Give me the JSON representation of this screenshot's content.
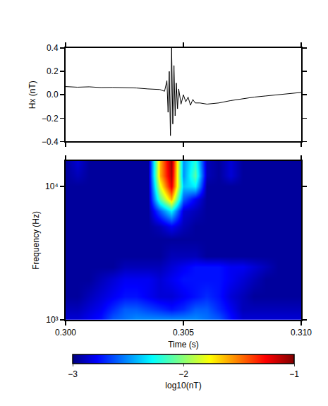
{
  "chart_data": [
    {
      "type": "line",
      "y_label": "Hx (nT)",
      "color": "#000000",
      "x": [
        0.3,
        0.3005,
        0.301,
        0.3015,
        0.302,
        0.3025,
        0.303,
        0.3035,
        0.304,
        0.3042,
        0.3043,
        0.30435,
        0.3044,
        0.30445,
        0.3045,
        0.30455,
        0.3046,
        0.30465,
        0.3047,
        0.30475,
        0.3048,
        0.3049,
        0.305,
        0.3051,
        0.3052,
        0.3053,
        0.3054,
        0.3055,
        0.3057,
        0.306,
        0.3065,
        0.307,
        0.3075,
        0.308,
        0.3085,
        0.309,
        0.3095,
        0.31
      ],
      "values": [
        0.07,
        0.065,
        0.068,
        0.062,
        0.063,
        0.06,
        0.058,
        0.05,
        0.045,
        0.03,
        0.12,
        -0.15,
        0.2,
        -0.35,
        0.4,
        -0.25,
        0.25,
        -0.18,
        0.1,
        -0.12,
        0.05,
        -0.08,
        0.0,
        -0.06,
        -0.02,
        -0.09,
        -0.04,
        -0.07,
        -0.07,
        -0.08,
        -0.07,
        -0.05,
        -0.035,
        -0.02,
        -0.01,
        0.0,
        0.01,
        0.02
      ],
      "xlim": [
        0.3,
        0.31
      ],
      "ylim": [
        -0.4,
        0.4
      ],
      "xticks": [
        0.3,
        0.305,
        0.31
      ],
      "yticks": [
        {
          "value": -0.4,
          "label": "−0.4"
        },
        {
          "value": -0.2,
          "label": "−0.2"
        },
        {
          "value": 0,
          "label": "0.0"
        },
        {
          "value": 0.2,
          "label": "0.2"
        },
        {
          "value": 0.4,
          "label": "0.4"
        }
      ],
      "tick_labels": "y"
    },
    {
      "type": "heatmap",
      "x_label": "Time (s)",
      "y_label": "Frequency (Hz)",
      "log": "y",
      "x": [
        0.3,
        0.3005,
        0.301,
        0.3015,
        0.302,
        0.3025,
        0.303,
        0.3035,
        0.304,
        0.3045,
        0.305,
        0.3055,
        0.306,
        0.3065,
        0.307,
        0.3075,
        0.308,
        0.3085,
        0.309,
        0.3095,
        0.31
      ],
      "y": [
        1000,
        1200,
        1500,
        2000,
        2500,
        3000,
        4000,
        5000,
        6500,
        8000,
        10000,
        12000,
        15500
      ],
      "z": [
        [
          -2.85,
          -2.85,
          -2.8,
          -2.75,
          -2.6,
          -2.55,
          -2.5,
          -2.5,
          -2.5,
          -2.5,
          -2.5,
          -2.5,
          -2.55,
          -2.6,
          -2.75,
          -2.85,
          -2.85,
          -2.85,
          -2.85,
          -2.85,
          -2.85
        ],
        [
          -2.9,
          -2.9,
          -2.85,
          -2.8,
          -2.7,
          -2.6,
          -2.6,
          -2.65,
          -2.7,
          -2.75,
          -2.7,
          -2.6,
          -2.6,
          -2.7,
          -2.8,
          -2.9,
          -2.9,
          -2.9,
          -2.9,
          -2.9,
          -2.9
        ],
        [
          -2.95,
          -2.95,
          -2.9,
          -2.85,
          -2.8,
          -2.75,
          -2.75,
          -2.8,
          -2.85,
          -2.85,
          -2.8,
          -2.75,
          -2.7,
          -2.75,
          -2.85,
          -2.9,
          -2.95,
          -2.95,
          -2.95,
          -2.95,
          -2.95
        ],
        [
          -2.95,
          -2.95,
          -2.95,
          -2.9,
          -2.85,
          -2.8,
          -2.8,
          -2.8,
          -2.85,
          -2.8,
          -2.75,
          -2.75,
          -2.75,
          -2.75,
          -2.8,
          -2.85,
          -2.9,
          -2.95,
          -2.95,
          -2.95,
          -2.95
        ],
        [
          -2.95,
          -2.95,
          -2.95,
          -2.95,
          -2.95,
          -2.9,
          -2.9,
          -2.9,
          -2.9,
          -2.85,
          -2.8,
          -2.75,
          -2.75,
          -2.75,
          -2.8,
          -2.8,
          -2.85,
          -2.9,
          -2.95,
          -2.95,
          -2.95
        ],
        [
          -2.95,
          -2.95,
          -2.95,
          -2.95,
          -2.95,
          -2.95,
          -2.95,
          -2.95,
          -2.95,
          -2.9,
          -2.9,
          -2.9,
          -2.95,
          -2.95,
          -2.95,
          -2.95,
          -2.95,
          -2.95,
          -2.95,
          -2.95,
          -2.95
        ],
        [
          -2.95,
          -2.95,
          -2.95,
          -2.95,
          -2.95,
          -2.95,
          -2.95,
          -2.95,
          -2.95,
          -2.95,
          -2.95,
          -2.95,
          -2.95,
          -2.95,
          -2.95,
          -2.95,
          -2.95,
          -2.95,
          -2.95,
          -2.95,
          -2.95
        ],
        [
          -2.95,
          -2.95,
          -2.95,
          -2.95,
          -2.95,
          -2.95,
          -2.95,
          -2.95,
          -2.9,
          -2.8,
          -2.9,
          -2.95,
          -2.95,
          -2.95,
          -2.95,
          -2.95,
          -2.95,
          -2.95,
          -2.95,
          -2.95,
          -2.95
        ],
        [
          -2.95,
          -2.95,
          -2.95,
          -2.95,
          -2.95,
          -2.95,
          -2.95,
          -2.95,
          -2.6,
          -2.3,
          -2.85,
          -2.9,
          -2.95,
          -2.95,
          -2.95,
          -2.95,
          -2.95,
          -2.95,
          -2.95,
          -2.95,
          -2.95
        ],
        [
          -2.95,
          -2.95,
          -2.95,
          -2.95,
          -2.95,
          -2.95,
          -2.95,
          -2.95,
          -2.1,
          -1.6,
          -2.6,
          -2.8,
          -2.95,
          -2.95,
          -2.95,
          -2.95,
          -2.95,
          -2.95,
          -2.95,
          -2.95,
          -2.95
        ],
        [
          -2.95,
          -2.95,
          -2.95,
          -2.95,
          -2.95,
          -2.95,
          -2.95,
          -2.95,
          -1.8,
          -1.2,
          -2.4,
          -2.3,
          -2.95,
          -2.95,
          -2.95,
          -2.95,
          -2.95,
          -2.95,
          -2.95,
          -2.95,
          -2.95
        ],
        [
          -2.95,
          -2.9,
          -2.95,
          -2.95,
          -2.95,
          -2.95,
          -2.95,
          -2.95,
          -1.6,
          -1.1,
          -2.5,
          -2.1,
          -2.9,
          -2.95,
          -2.85,
          -2.95,
          -2.95,
          -2.95,
          -2.95,
          -2.95,
          -2.95
        ],
        [
          -2.95,
          -2.85,
          -2.95,
          -2.95,
          -2.95,
          -2.95,
          -2.95,
          -2.95,
          -1.6,
          -1.05,
          -2.5,
          -2.2,
          -2.9,
          -2.95,
          -2.85,
          -2.95,
          -2.95,
          -2.95,
          -2.95,
          -2.95,
          -2.95
        ]
      ],
      "xlim": [
        0.3,
        0.31
      ],
      "ylim": [
        1000,
        15500
      ],
      "xticks": [
        {
          "value": 0.3,
          "label": "0.300"
        },
        {
          "value": 0.305,
          "label": "0.305"
        },
        {
          "value": 0.31,
          "label": "0.310"
        }
      ],
      "yticks": [
        {
          "value": 1000,
          "label": "10³"
        },
        {
          "value": 10000,
          "label": "10⁴"
        }
      ],
      "colorbar": {
        "title": "log10(nT)",
        "range": [
          -3,
          -1
        ],
        "ticks": [
          {
            "value": -3,
            "label": "−3"
          },
          {
            "value": -2,
            "label": "−2"
          },
          {
            "value": -1,
            "label": "−1"
          }
        ]
      }
    }
  ]
}
